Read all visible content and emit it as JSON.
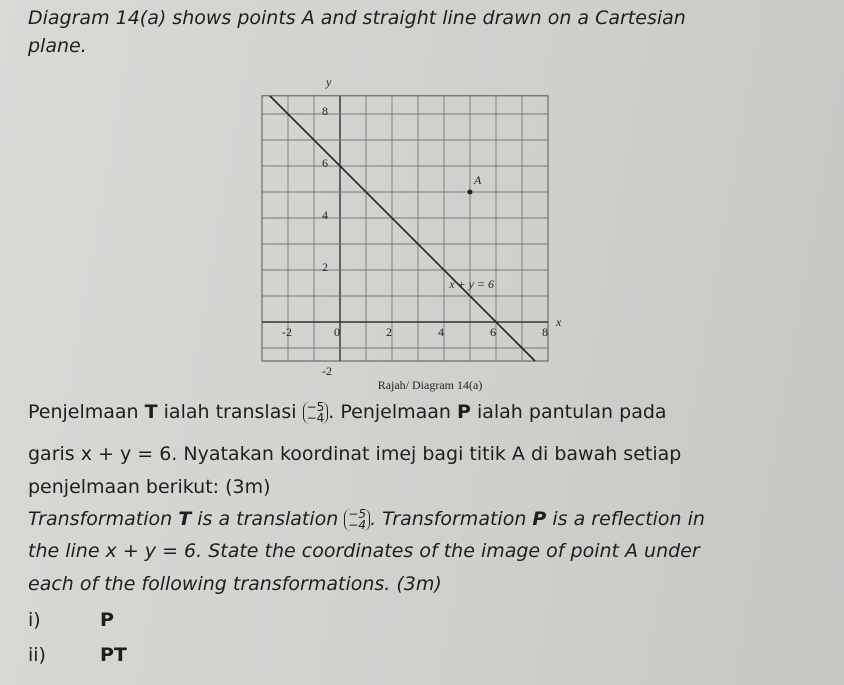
{
  "intro_lines": [
    "Diagram 14(a) shows points A and straight line drawn on a Cartesian",
    "plane."
  ],
  "diagram": {
    "y_axis_label": "y",
    "x_axis_label": "x",
    "y_tick_labels": [
      "8",
      "6",
      "4",
      "2",
      "-2"
    ],
    "x_tick_labels": [
      "-2",
      "0",
      "2",
      "4",
      "6",
      "8"
    ],
    "point_label": "A",
    "line_label": "x + y = 6",
    "caption": "Rajah/ Diagram 14(a)"
  },
  "malay": {
    "line_1": [
      "Penjelmaan ",
      "T",
      " ialah translasi ",
      ". Penjelmaan ",
      "P",
      " ialah pantulan pada"
    ],
    "vector": [
      "−5",
      "−4"
    ],
    "line_2": "garis x + y = 6. Nyatakan koordinat imej bagi titik A di bawah setiap",
    "line_3": "penjelmaan berikut: (3m)"
  },
  "english": {
    "line_1": [
      "Transformation ",
      "T",
      " is a translation ",
      ". Transformation ",
      "P",
      " is a reflection in"
    ],
    "vector": [
      "−5",
      "−4"
    ],
    "line_2": "the line x + y = 6. State the coordinates of the image of point A under",
    "line_3": "each of the following transformations. (3m)"
  },
  "questions": [
    {
      "number": "i)",
      "label": "P"
    },
    {
      "number": "ii)",
      "label": "PT"
    }
  ]
}
